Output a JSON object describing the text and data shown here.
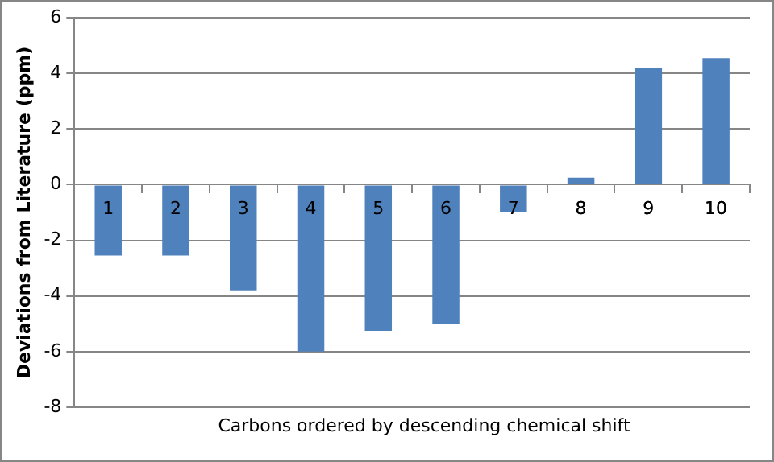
{
  "chart_data": {
    "type": "bar",
    "xlabel": "Carbons ordered by descending chemical shift",
    "ylabel": "Deviations from Literature (ppm)",
    "categories": [
      "1",
      "2",
      "3",
      "4",
      "5",
      "6",
      "7",
      "8",
      "9",
      "10"
    ],
    "series": [
      {
        "color": "#4f81bd",
        "values": [
          -2.55,
          -2.55,
          -3.8,
          -6,
          -5.25,
          -5,
          -1,
          0.25,
          4.2,
          4.55
        ]
      }
    ],
    "ylim": [
      -8,
      6
    ],
    "yticks": [
      -8,
      -6,
      -4,
      -2,
      0,
      2,
      4,
      6
    ],
    "grid": "y",
    "legend": false
  }
}
